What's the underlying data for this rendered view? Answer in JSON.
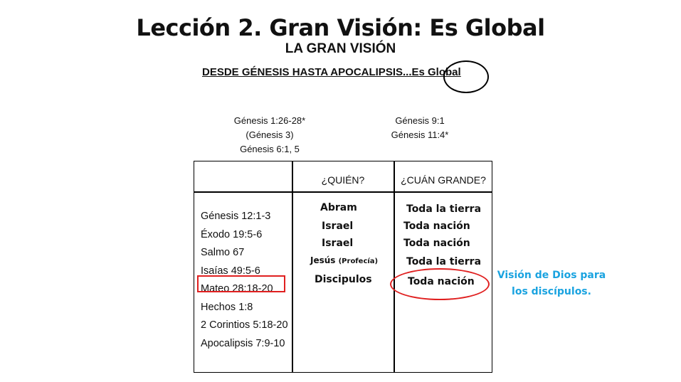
{
  "title": "Lección 2. Gran Visión: Es Global",
  "subtitle": "LA GRAN VISIÓN",
  "heading": {
    "prefix": "DESDE GÉNESIS HASTA APOCALIPSIS...Es ",
    "circled": "Global"
  },
  "refs_left": [
    "Génesis 1:26-28*",
    "(Génesis 3)",
    "Génesis 6:1, 5"
  ],
  "refs_right": [
    "Génesis 9:1",
    "Génesis 11:4*"
  ],
  "table": {
    "headers": [
      "",
      "¿QUIÉN?",
      "¿CUÁN GRANDE?"
    ],
    "passages": [
      "Génesis 12:1-3",
      "Éxodo 19:5-6",
      "Salmo 67",
      "Isaías 49:5-6",
      "Mateo 28:18-20",
      "Hechos 1:8",
      "2 Corintios 5:18-20",
      "Apocalipsis 7:9-10"
    ],
    "who": [
      {
        "text": "Abram",
        "note": ""
      },
      {
        "text": "Israel",
        "note": ""
      },
      {
        "text": "Israel",
        "note": ""
      },
      {
        "text": "Jesús ",
        "note": "(Profecía)"
      },
      {
        "text": "Discipulos",
        "note": ""
      }
    ],
    "how_big": [
      "Toda la tierra",
      "Toda nación",
      "Toda nación",
      "Toda la tierra",
      "Toda nación"
    ]
  },
  "highlight_note": {
    "line1": "Visión de Dios para",
    "line2": "los discípulos."
  },
  "colors": {
    "highlight": "#e02020",
    "note": "#1aa3e0"
  }
}
